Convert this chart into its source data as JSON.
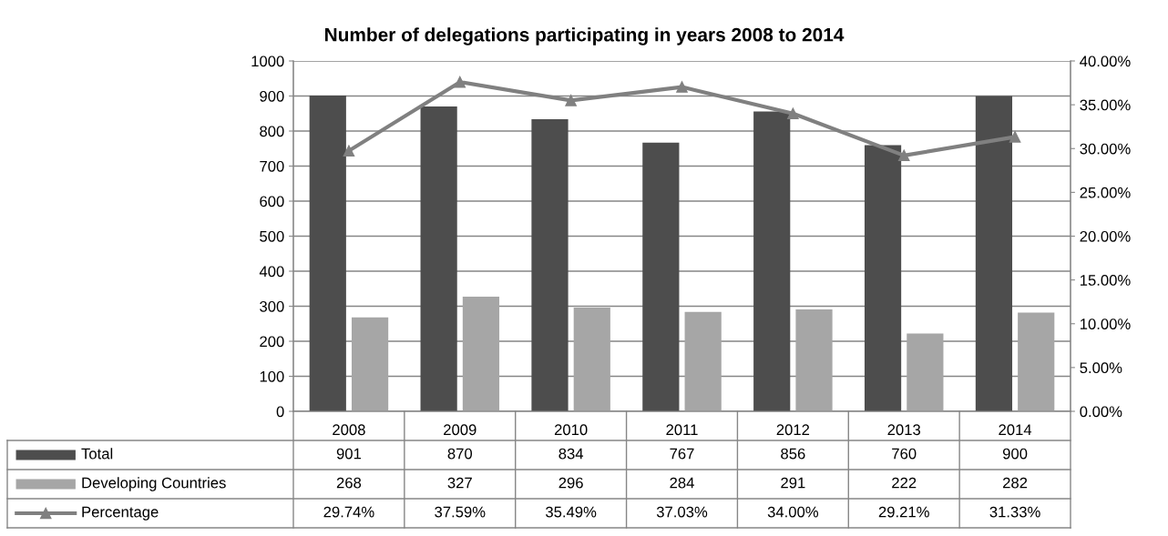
{
  "chart_data": {
    "type": "bar",
    "title": "Number of delegations participating in years 2008 to 2014",
    "categories": [
      "2008",
      "2009",
      "2010",
      "2011",
      "2012",
      "2013",
      "2014"
    ],
    "series": [
      {
        "name": "Total",
        "color": "#4d4d4d",
        "values": [
          901,
          870,
          834,
          767,
          856,
          760,
          900
        ]
      },
      {
        "name": "Developing Countries",
        "color": "#a6a6a6",
        "values": [
          268,
          327,
          296,
          284,
          291,
          222,
          282
        ]
      },
      {
        "name": "Percentage",
        "type": "line",
        "axis": "y2",
        "color": "#808080",
        "marker": "triangle",
        "line_style": "solid",
        "values": [
          29.74,
          37.59,
          35.49,
          37.03,
          34.0,
          29.21,
          31.33
        ],
        "value_labels": [
          "29.74%",
          "37.59%",
          "35.49%",
          "37.03%",
          "34.00%",
          "29.21%",
          "31.33%"
        ]
      }
    ],
    "data_labels": true,
    "ylim": [
      0,
      1000
    ],
    "yticks": [
      0,
      100,
      200,
      300,
      400,
      500,
      600,
      700,
      800,
      900,
      1000
    ],
    "y2lim": [
      0,
      40
    ],
    "y2ticks": [
      {
        "value": 0,
        "label": "0.00%"
      },
      {
        "value": 5,
        "label": "5.00%"
      },
      {
        "value": 10,
        "label": "10.00%"
      },
      {
        "value": 15,
        "label": "15.00%"
      },
      {
        "value": 20,
        "label": "20.00%"
      },
      {
        "value": 25,
        "label": "25.00%"
      },
      {
        "value": 30,
        "label": "30.00%"
      },
      {
        "value": 35,
        "label": "35.00%"
      },
      {
        "value": 40,
        "label": "40.00%"
      }
    ],
    "grid": "y",
    "legend": "bottom"
  }
}
